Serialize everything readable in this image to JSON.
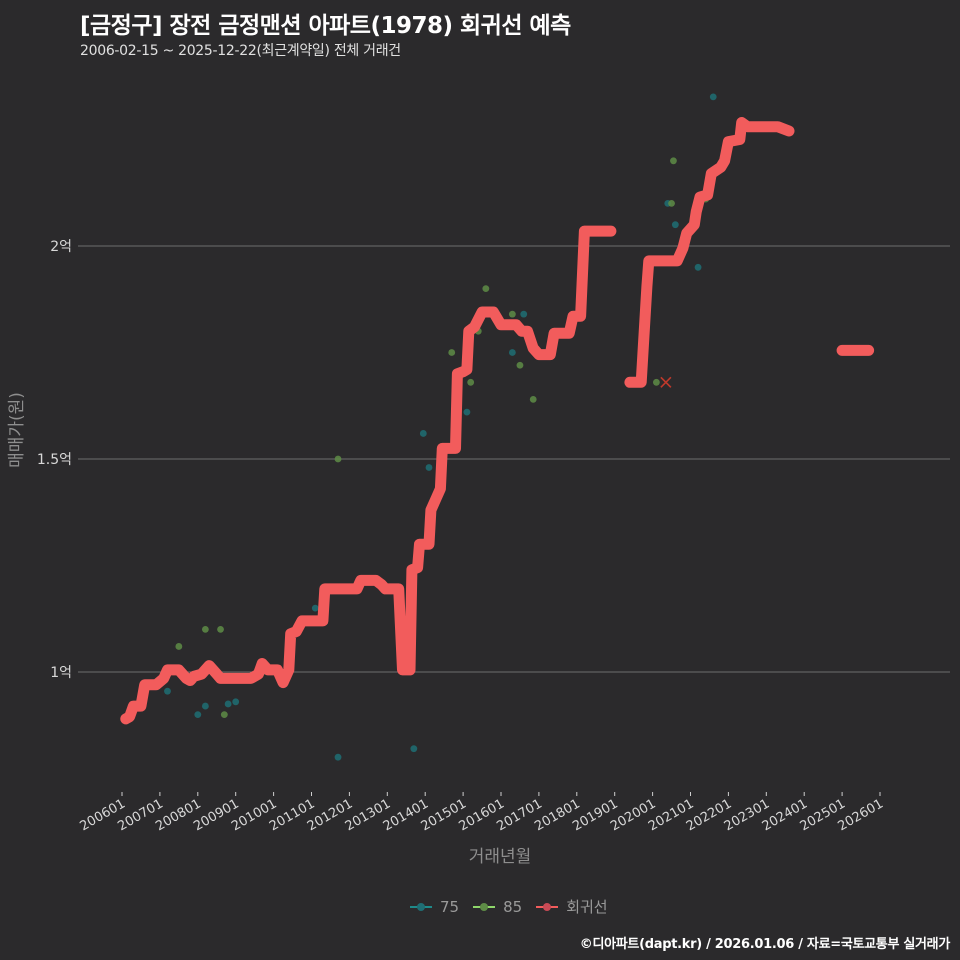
{
  "header": {
    "title": "[금정구] 장전 금정맨션 아파트(1978) 회귀선 예측",
    "subtitle": "2006-02-15 ~ 2025-12-22(최근계약일) 전체 거래건"
  },
  "axes": {
    "ylabel": "매매가(원)",
    "xlabel": "거래년월"
  },
  "legend": [
    {
      "label": "75",
      "color": "#1f8a8a"
    },
    {
      "label": "85",
      "color": "#8ed66a"
    },
    {
      "label": "회귀선",
      "color": "#f25c5c"
    }
  ],
  "caption": "©디아파트(dapt.kr) / 2026.01.06 / 자료=국토교통부 실거래가",
  "colors": {
    "background": "#2b2a2c",
    "grid": "#6e6e6e",
    "series_75": "#1f6e74",
    "series_85": "#5e8c46",
    "regression": "#f25c5c"
  },
  "chart_data": {
    "type": "scatter",
    "title": "[금정구] 장전 금정맨션 아파트(1978) 회귀선 예측",
    "subtitle": "2006-02-15 ~ 2025-12-22(최근계약일) 전체 거래건",
    "xlabel": "거래년월",
    "ylabel": "매매가(원)",
    "x_ticks": [
      "200601",
      "200701",
      "200801",
      "200901",
      "201001",
      "201101",
      "201201",
      "201301",
      "201401",
      "201501",
      "201601",
      "201701",
      "201801",
      "201901",
      "202001",
      "202101",
      "202201",
      "202301",
      "202401",
      "202501",
      "202601"
    ],
    "y_ticks": [
      {
        "value": 1.0,
        "label": "1억"
      },
      {
        "value": 1.5,
        "label": "1.5억"
      },
      {
        "value": 2.0,
        "label": "2억"
      }
    ],
    "y_unit": "억원",
    "ylim": [
      0.78,
      2.36
    ],
    "grid": "horizontal",
    "legend_position": "bottom",
    "series": [
      {
        "name": "75",
        "type": "scatter",
        "points": [
          [
            2007.2,
            0.955
          ],
          [
            2008.0,
            0.9
          ],
          [
            2008.2,
            0.92
          ],
          [
            2008.8,
            0.925
          ],
          [
            2009.0,
            0.93
          ],
          [
            2011.1,
            1.15
          ],
          [
            2011.7,
            0.8
          ],
          [
            2013.7,
            0.82
          ],
          [
            2013.95,
            1.56
          ],
          [
            2014.1,
            1.48
          ],
          [
            2015.1,
            1.61
          ],
          [
            2016.3,
            1.75
          ],
          [
            2016.6,
            1.84
          ],
          [
            2020.4,
            2.1
          ],
          [
            2020.6,
            2.05
          ],
          [
            2021.2,
            1.95
          ],
          [
            2021.6,
            2.35
          ],
          [
            2022.8,
            2.28
          ]
        ]
      },
      {
        "name": "85",
        "type": "scatter",
        "points": [
          [
            2007.5,
            1.06
          ],
          [
            2008.2,
            1.1
          ],
          [
            2008.6,
            1.1
          ],
          [
            2008.7,
            0.9
          ],
          [
            2009.7,
            1.0
          ],
          [
            2011.7,
            1.5
          ],
          [
            2014.7,
            1.75
          ],
          [
            2015.2,
            1.68
          ],
          [
            2015.4,
            1.8
          ],
          [
            2015.6,
            1.9
          ],
          [
            2016.3,
            1.84
          ],
          [
            2016.5,
            1.72
          ],
          [
            2016.85,
            1.64
          ],
          [
            2020.1,
            1.68
          ],
          [
            2020.5,
            2.1
          ],
          [
            2020.55,
            2.2
          ],
          [
            2021.4,
            2.11
          ]
        ]
      },
      {
        "name": "회귀선",
        "type": "line",
        "segments": [
          [
            [
              2006.1,
              0.89
            ],
            [
              2006.2,
              0.895
            ],
            [
              2006.3,
              0.92
            ],
            [
              2006.5,
              0.92
            ],
            [
              2006.6,
              0.97
            ],
            [
              2006.9,
              0.97
            ],
            [
              2007.1,
              0.985
            ],
            [
              2007.2,
              1.005
            ],
            [
              2007.5,
              1.005
            ],
            [
              2007.7,
              0.985
            ],
            [
              2007.8,
              0.98
            ],
            [
              2007.9,
              0.99
            ],
            [
              2008.1,
              0.995
            ],
            [
              2008.3,
              1.015
            ],
            [
              2008.5,
              0.995
            ],
            [
              2008.6,
              0.985
            ],
            [
              2009.0,
              0.985
            ],
            [
              2009.4,
              0.985
            ],
            [
              2009.6,
              0.995
            ],
            [
              2009.7,
              1.02
            ],
            [
              2009.85,
              1.005
            ],
            [
              2010.1,
              1.005
            ],
            [
              2010.25,
              0.975
            ],
            [
              2010.4,
              1.005
            ],
            [
              2010.45,
              1.09
            ],
            [
              2010.6,
              1.095
            ],
            [
              2010.75,
              1.12
            ],
            [
              2011.3,
              1.12
            ],
            [
              2011.35,
              1.195
            ],
            [
              2012.2,
              1.195
            ],
            [
              2012.3,
              1.215
            ],
            [
              2012.7,
              1.215
            ],
            [
              2012.85,
              1.205
            ],
            [
              2012.95,
              1.195
            ],
            [
              2013.3,
              1.195
            ],
            [
              2013.4,
              1.005
            ],
            [
              2013.6,
              1.005
            ],
            [
              2013.65,
              1.24
            ],
            [
              2013.8,
              1.245
            ],
            [
              2013.85,
              1.3
            ],
            [
              2014.1,
              1.3
            ],
            [
              2014.15,
              1.38
            ],
            [
              2014.3,
              1.41
            ],
            [
              2014.4,
              1.43
            ],
            [
              2014.45,
              1.525
            ],
            [
              2014.8,
              1.525
            ],
            [
              2014.85,
              1.7
            ],
            [
              2015.0,
              1.705
            ],
            [
              2015.1,
              1.71
            ],
            [
              2015.15,
              1.8
            ],
            [
              2015.3,
              1.81
            ],
            [
              2015.5,
              1.845
            ],
            [
              2015.8,
              1.845
            ],
            [
              2016.0,
              1.815
            ],
            [
              2016.4,
              1.815
            ],
            [
              2016.55,
              1.8
            ],
            [
              2016.7,
              1.8
            ],
            [
              2016.85,
              1.76
            ],
            [
              2017.0,
              1.745
            ],
            [
              2017.3,
              1.745
            ],
            [
              2017.4,
              1.795
            ],
            [
              2017.8,
              1.795
            ],
            [
              2017.9,
              1.835
            ],
            [
              2018.1,
              1.835
            ],
            [
              2018.2,
              2.035
            ],
            [
              2018.9,
              2.035
            ]
          ],
          [
            [
              2019.4,
              1.68
            ],
            [
              2019.7,
              1.68
            ],
            [
              2019.85,
              1.905
            ],
            [
              2019.9,
              1.965
            ],
            [
              2020.65,
              1.965
            ],
            [
              2020.8,
              1.995
            ],
            [
              2020.9,
              2.03
            ],
            [
              2021.1,
              2.05
            ],
            [
              2021.15,
              2.08
            ],
            [
              2021.25,
              2.115
            ],
            [
              2021.45,
              2.12
            ],
            [
              2021.55,
              2.17
            ],
            [
              2021.8,
              2.185
            ],
            [
              2021.9,
              2.2
            ],
            [
              2022.0,
              2.245
            ],
            [
              2022.3,
              2.25
            ],
            [
              2022.35,
              2.29
            ],
            [
              2022.5,
              2.28
            ],
            [
              2023.3,
              2.28
            ],
            [
              2023.6,
              2.27
            ]
          ],
          [
            [
              2025.0,
              1.755
            ],
            [
              2025.7,
              1.755
            ]
          ]
        ],
        "outlier_marker": [
          2020.35,
          1.68
        ]
      }
    ]
  }
}
